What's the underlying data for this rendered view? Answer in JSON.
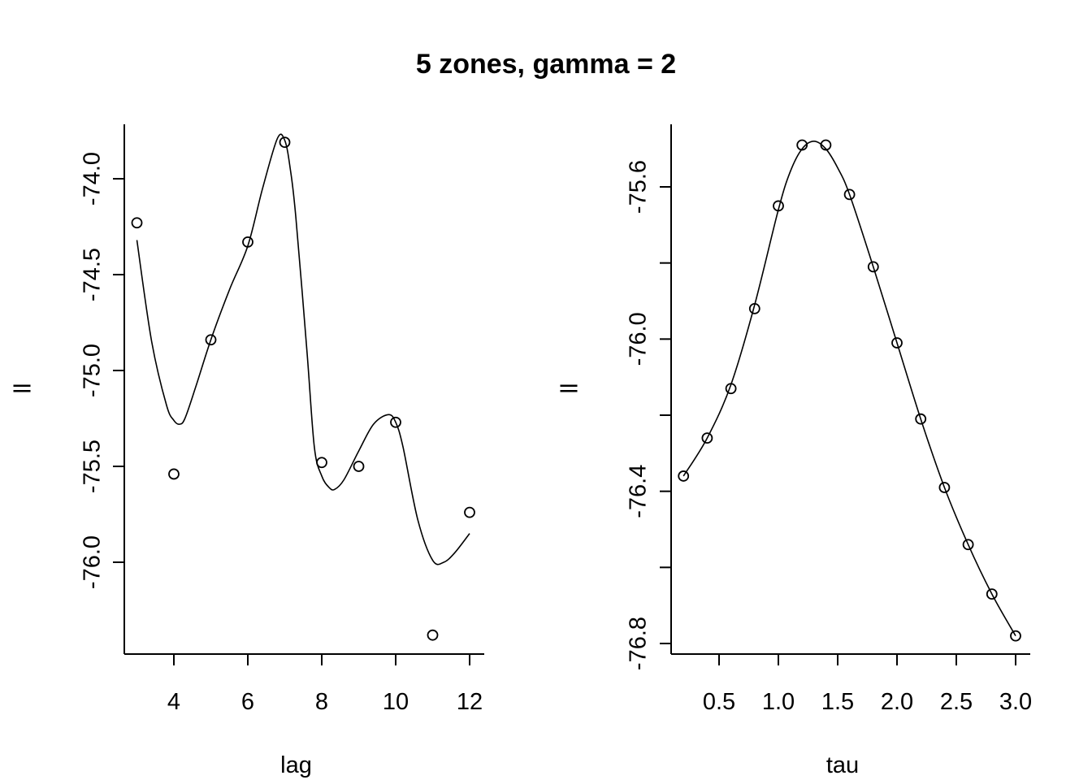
{
  "figure": {
    "title": "5 zones, gamma = 2"
  },
  "chart_data": [
    {
      "type": "scatter",
      "xlabel": "lag",
      "ylabel": "ll",
      "xlim": [
        2.8,
        12.4
      ],
      "ylim": [
        -76.5,
        -73.72
      ],
      "x_ticks": [
        4,
        6,
        8,
        10,
        12
      ],
      "x_tick_labels": [
        "4",
        "6",
        "8",
        "10",
        "12"
      ],
      "y_ticks": [
        -74.0,
        -74.5,
        -75.0,
        -75.5,
        -76.0
      ],
      "y_tick_labels": [
        "-74.0",
        "-74.5",
        "-75.0",
        "-75.5",
        "-76.0"
      ],
      "points": {
        "x": [
          3,
          4,
          5,
          6,
          7,
          8,
          9,
          10,
          11,
          12
        ],
        "y": [
          -74.23,
          -75.54,
          -74.84,
          -74.33,
          -73.81,
          -75.48,
          -75.5,
          -75.27,
          -76.38,
          -75.74
        ]
      },
      "smooth_curve": {
        "x": [
          3.0,
          3.4,
          3.8,
          4.0,
          4.15,
          4.3,
          4.6,
          5.0,
          5.5,
          6.0,
          6.4,
          6.8,
          7.0,
          7.15,
          7.3,
          7.6,
          7.8,
          8.0,
          8.2,
          8.35,
          8.6,
          9.0,
          9.4,
          9.8,
          10.0,
          10.2,
          10.6,
          11.0,
          11.3,
          11.6,
          12.0
        ],
        "y": [
          -74.32,
          -74.85,
          -75.18,
          -75.26,
          -75.28,
          -75.25,
          -75.08,
          -74.84,
          -74.58,
          -74.35,
          -74.05,
          -73.79,
          -73.8,
          -73.95,
          -74.2,
          -74.9,
          -75.4,
          -75.55,
          -75.61,
          -75.62,
          -75.57,
          -75.42,
          -75.28,
          -75.23,
          -75.27,
          -75.4,
          -75.78,
          -75.99,
          -76.0,
          -75.95,
          -75.85
        ]
      }
    },
    {
      "type": "scatter",
      "xlabel": "tau",
      "ylabel": "ll",
      "xlim": [
        0.12,
        3.12
      ],
      "ylim": [
        -76.84,
        -75.47
      ],
      "x_ticks": [
        0.5,
        1.0,
        1.5,
        2.0,
        2.5,
        3.0
      ],
      "x_tick_labels": [
        "0.5",
        "1.0",
        "1.5",
        "2.0",
        "2.5",
        "3.0"
      ],
      "y_ticks": [
        -75.6,
        -75.8,
        -76.0,
        -76.2,
        -76.4,
        -76.6,
        -76.8
      ],
      "y_tick_labels": [
        "-75.6",
        "",
        "-76.0",
        "",
        "-76.4",
        "",
        "-76.8"
      ],
      "points": {
        "x": [
          0.2,
          0.4,
          0.6,
          0.8,
          1.0,
          1.2,
          1.4,
          1.6,
          1.8,
          2.0,
          2.2,
          2.4,
          2.6,
          2.8,
          3.0
        ],
        "y": [
          -76.36,
          -76.26,
          -76.13,
          -75.92,
          -75.65,
          -75.49,
          -75.49,
          -75.62,
          -75.81,
          -76.01,
          -76.21,
          -76.39,
          -76.54,
          -76.67,
          -76.78
        ]
      },
      "smooth_curve": {
        "x": [
          0.2,
          0.4,
          0.6,
          0.8,
          1.0,
          1.1,
          1.2,
          1.3,
          1.4,
          1.5,
          1.6,
          1.8,
          2.0,
          2.2,
          2.4,
          2.6,
          2.8,
          3.0
        ],
        "y": [
          -76.36,
          -76.26,
          -76.12,
          -75.91,
          -75.66,
          -75.56,
          -75.5,
          -75.48,
          -75.5,
          -75.55,
          -75.62,
          -75.81,
          -76.01,
          -76.21,
          -76.39,
          -76.54,
          -76.67,
          -76.78
        ]
      }
    }
  ]
}
